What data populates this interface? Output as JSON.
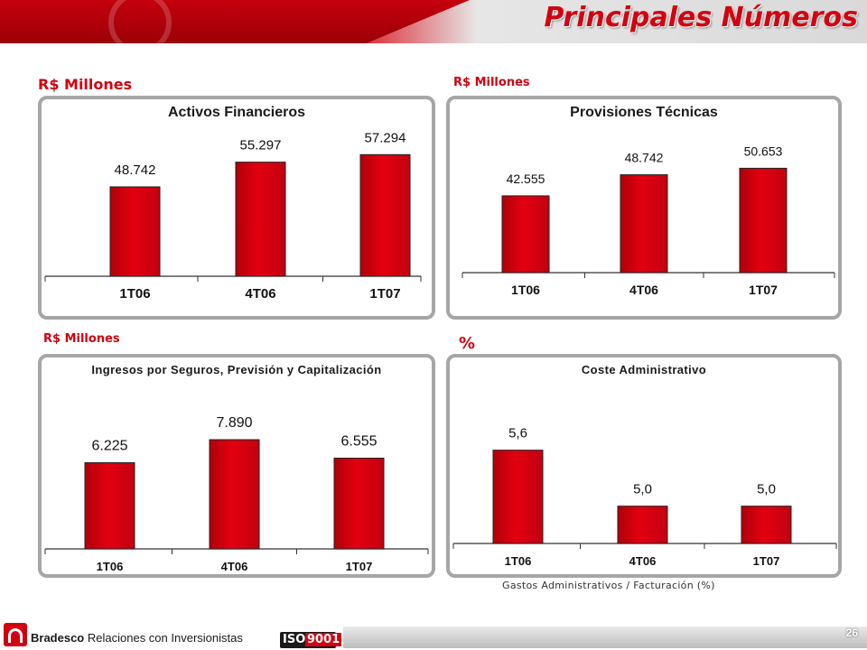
{
  "header": {
    "title": "Principales Números"
  },
  "units": {
    "activos": "R$ Millones",
    "provisiones": "R$ Millones",
    "ingresos": "R$ Millones",
    "coste": "%"
  },
  "caption": "Gastos Administrativos / Facturación (%)",
  "footer": {
    "brand": "Bradesco",
    "text": "Relaciones con Inversionistas",
    "iso_left": "ISO",
    "iso_right": "9001",
    "page": "26"
  },
  "colors": {
    "accent": "#d3000f",
    "bar": "#e2000f",
    "panel_border": "#a6a6a6"
  },
  "chart_data": [
    {
      "type": "bar",
      "title": "Activos Financieros",
      "categories": [
        "1T06",
        "4T06",
        "1T07"
      ],
      "values": [
        48742,
        55297,
        57294
      ],
      "labels": [
        "48.742",
        "55.297",
        "57.294"
      ],
      "ylim": [
        25000,
        60000
      ],
      "unit": "R$ Millones"
    },
    {
      "type": "bar",
      "title": "Provisiones Técnicas",
      "categories": [
        "1T06",
        "4T06",
        "1T07"
      ],
      "values": [
        42555,
        48742,
        50653
      ],
      "labels": [
        "42.555",
        "48.742",
        "50.653"
      ],
      "ylim": [
        20000,
        55000
      ],
      "unit": "R$ Millones"
    },
    {
      "type": "bar",
      "title": "Ingresos por Seguros, Previsión y Capitalización",
      "categories": [
        "1T06",
        "4T06",
        "1T07"
      ],
      "values": [
        6225,
        7890,
        6555
      ],
      "labels": [
        "6.225",
        "7.890",
        "6.555"
      ],
      "ylim": [
        0,
        9000
      ],
      "unit": "R$ Millones"
    },
    {
      "type": "bar",
      "title": "Coste Administrativo",
      "categories": [
        "1T06",
        "4T06",
        "1T07"
      ],
      "values": [
        5.6,
        5.0,
        5.0
      ],
      "labels": [
        "5,6",
        "5,0",
        "5,0"
      ],
      "ylim": [
        4.6,
        5.8
      ],
      "unit": "%"
    }
  ]
}
